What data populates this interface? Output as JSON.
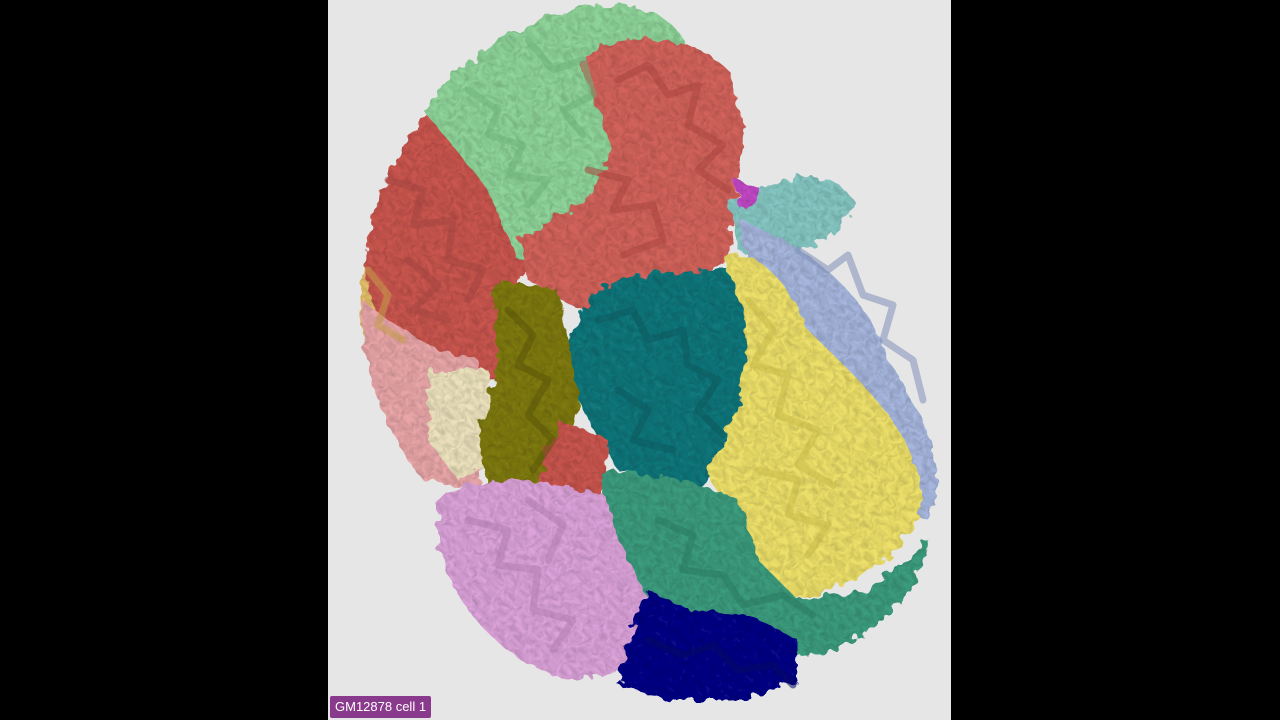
{
  "viewer": {
    "caption": "GM12878 cell 1",
    "background_color": "#e6e6e6",
    "letterbox_color": "#000000",
    "caption_color": "#8a3a8c"
  },
  "structure": {
    "regions": [
      {
        "name": "mint",
        "color": "#8fd49a"
      },
      {
        "name": "salmon-top",
        "color": "#d2635c"
      },
      {
        "name": "brick",
        "color": "#c9574f"
      },
      {
        "name": "gold-rim",
        "color": "#e5bf6a"
      },
      {
        "name": "pink",
        "color": "#e8a6a8"
      },
      {
        "name": "cream",
        "color": "#ece2bd"
      },
      {
        "name": "olive",
        "color": "#7f7a12"
      },
      {
        "name": "teal",
        "color": "#13777c"
      },
      {
        "name": "yellow",
        "color": "#ede06a"
      },
      {
        "name": "periwinkle",
        "color": "#a6b6dd"
      },
      {
        "name": "aqua",
        "color": "#86c7c3"
      },
      {
        "name": "lilac",
        "color": "#dba3d9"
      },
      {
        "name": "sea-green",
        "color": "#3d9c7e"
      },
      {
        "name": "navy",
        "color": "#0a0f86"
      },
      {
        "name": "magenta",
        "color": "#c34ac7"
      }
    ]
  }
}
